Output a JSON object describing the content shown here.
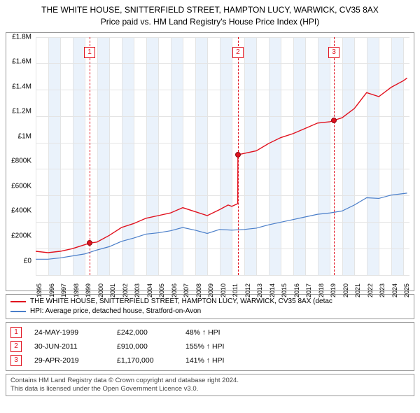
{
  "title_line1": "THE WHITE HOUSE, SNITTERFIELD STREET, HAMPTON LUCY, WARWICK, CV35 8AX",
  "title_line2": "Price paid vs. HM Land Registry's House Price Index (HPI)",
  "chart": {
    "type": "line",
    "background_color": "#ffffff",
    "grid_color": "#e4e4e4",
    "band_color": "#eaf2fb",
    "axis_color": "#666666",
    "x_min": 1995,
    "x_max": 2025.5,
    "y_min": 0,
    "y_max": 1800000,
    "y_ticks": [
      0,
      200000,
      400000,
      600000,
      800000,
      1000000,
      1200000,
      1400000,
      1600000,
      1800000
    ],
    "y_labels": [
      "£0",
      "£200K",
      "£400K",
      "£600K",
      "£800K",
      "£1M",
      "£1.2M",
      "£1.4M",
      "£1.6M",
      "£1.8M"
    ],
    "x_ticks": [
      1995,
      1996,
      1997,
      1998,
      1999,
      2000,
      2001,
      2002,
      2003,
      2004,
      2005,
      2006,
      2007,
      2008,
      2009,
      2010,
      2011,
      2012,
      2013,
      2014,
      2015,
      2016,
      2017,
      2018,
      2019,
      2020,
      2021,
      2022,
      2023,
      2024,
      2025
    ],
    "bands_every_other_year_start": 1995,
    "series": {
      "property": {
        "color": "#e1111e",
        "width": 1.4,
        "points": [
          [
            1995,
            180000
          ],
          [
            1996,
            170000
          ],
          [
            1997,
            180000
          ],
          [
            1998,
            200000
          ],
          [
            1999,
            230000
          ],
          [
            1999.4,
            242000
          ],
          [
            2000,
            250000
          ],
          [
            2001,
            300000
          ],
          [
            2002,
            360000
          ],
          [
            2003,
            390000
          ],
          [
            2004,
            430000
          ],
          [
            2005,
            450000
          ],
          [
            2006,
            470000
          ],
          [
            2007,
            510000
          ],
          [
            2008,
            480000
          ],
          [
            2009,
            450000
          ],
          [
            2010,
            495000
          ],
          [
            2010.7,
            530000
          ],
          [
            2011,
            520000
          ],
          [
            2011.48,
            540000
          ],
          [
            2011.5,
            910000
          ],
          [
            2012,
            920000
          ],
          [
            2013,
            940000
          ],
          [
            2014,
            995000
          ],
          [
            2015,
            1040000
          ],
          [
            2016,
            1070000
          ],
          [
            2017,
            1110000
          ],
          [
            2018,
            1150000
          ],
          [
            2019,
            1160000
          ],
          [
            2019.33,
            1170000
          ],
          [
            2020,
            1190000
          ],
          [
            2021,
            1260000
          ],
          [
            2022,
            1380000
          ],
          [
            2023,
            1350000
          ],
          [
            2024,
            1420000
          ],
          [
            2025,
            1470000
          ],
          [
            2025.3,
            1490000
          ]
        ]
      },
      "hpi": {
        "color": "#4a7ec9",
        "width": 1.2,
        "points": [
          [
            1995,
            120000
          ],
          [
            1996,
            120000
          ],
          [
            1997,
            130000
          ],
          [
            1998,
            145000
          ],
          [
            1999,
            160000
          ],
          [
            2000,
            190000
          ],
          [
            2001,
            215000
          ],
          [
            2002,
            255000
          ],
          [
            2003,
            280000
          ],
          [
            2004,
            310000
          ],
          [
            2005,
            320000
          ],
          [
            2006,
            335000
          ],
          [
            2007,
            360000
          ],
          [
            2008,
            340000
          ],
          [
            2009,
            315000
          ],
          [
            2010,
            345000
          ],
          [
            2011,
            340000
          ],
          [
            2012,
            345000
          ],
          [
            2013,
            355000
          ],
          [
            2014,
            380000
          ],
          [
            2015,
            400000
          ],
          [
            2016,
            420000
          ],
          [
            2017,
            440000
          ],
          [
            2018,
            460000
          ],
          [
            2019,
            470000
          ],
          [
            2020,
            485000
          ],
          [
            2021,
            530000
          ],
          [
            2022,
            585000
          ],
          [
            2023,
            580000
          ],
          [
            2024,
            605000
          ],
          [
            2025.3,
            620000
          ]
        ]
      }
    },
    "markers": [
      {
        "n": "1",
        "x": 1999.4,
        "y": 242000,
        "color": "#e1111e"
      },
      {
        "n": "2",
        "x": 2011.5,
        "y": 910000,
        "color": "#e1111e"
      },
      {
        "n": "3",
        "x": 2019.33,
        "y": 1170000,
        "color": "#e1111e"
      }
    ]
  },
  "legend": {
    "rows": [
      {
        "color": "#e1111e",
        "label": "THE WHITE HOUSE, SNITTERFIELD STREET, HAMPTON LUCY, WARWICK, CV35 8AX (detac"
      },
      {
        "color": "#4a7ec9",
        "label": "HPI: Average price, detached house, Stratford-on-Avon"
      }
    ]
  },
  "events": [
    {
      "n": "1",
      "color": "#e1111e",
      "date": "24-MAY-1999",
      "price": "£242,000",
      "pct": "48% ↑ HPI"
    },
    {
      "n": "2",
      "color": "#e1111e",
      "date": "30-JUN-2011",
      "price": "£910,000",
      "pct": "155% ↑ HPI"
    },
    {
      "n": "3",
      "color": "#e1111e",
      "date": "29-APR-2019",
      "price": "£1,170,000",
      "pct": "141% ↑ HPI"
    }
  ],
  "footer_line1": "Contains HM Land Registry data © Crown copyright and database right 2024.",
  "footer_line2": "This data is licensed under the Open Government Licence v3.0."
}
